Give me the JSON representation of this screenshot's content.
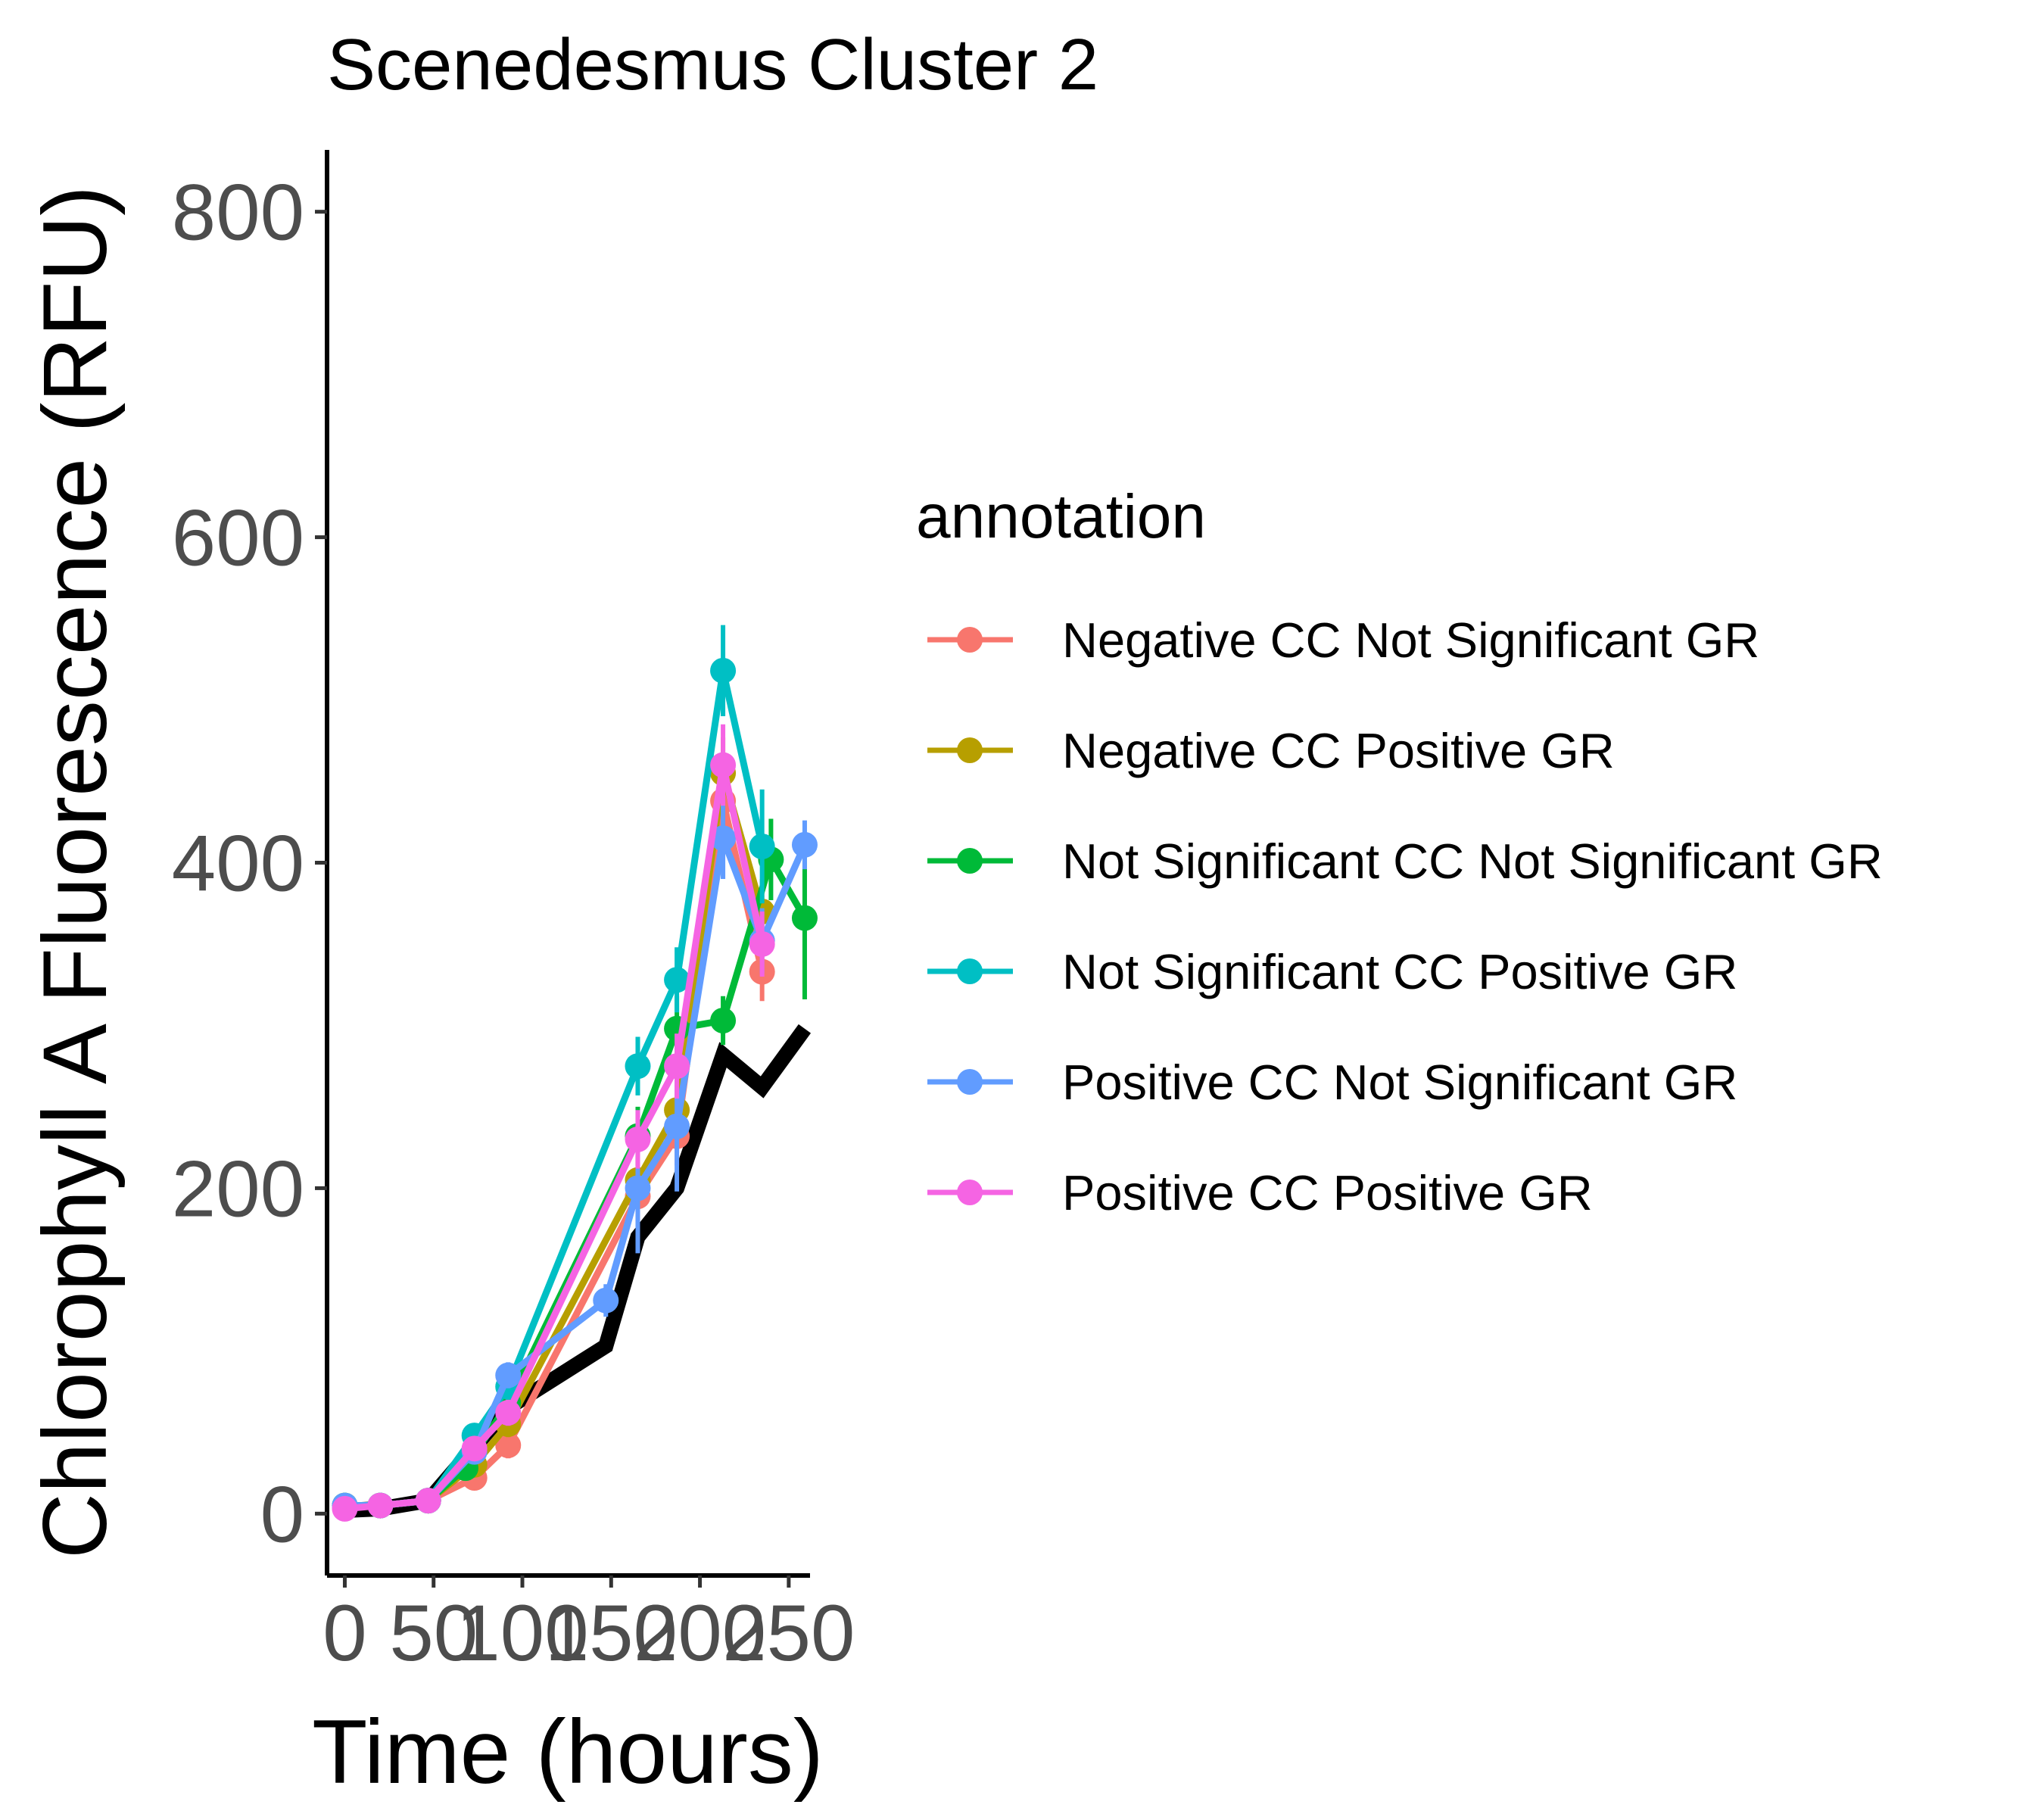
{
  "chart_data": {
    "type": "line",
    "title": "Scenedesmus Cluster 2",
    "xlabel": "Time (hours)",
    "ylabel": "Chlorophyll A Fluorescence (RFU)",
    "xlim": [
      -10,
      262
    ],
    "ylim": [
      -38,
      838
    ],
    "x_ticks": [
      0,
      50,
      100,
      150,
      200,
      250
    ],
    "x_tick_labels": [
      "0",
      "50",
      "100",
      "150",
      "200",
      "250"
    ],
    "y_ticks": [
      0,
      200,
      400,
      600,
      800
    ],
    "y_tick_labels": [
      "0",
      "200",
      "400",
      "600",
      "800"
    ],
    "grid": false,
    "legend": {
      "title": "annotation",
      "position": "right"
    },
    "series": [
      {
        "name": "Negative CC Not Significant GR",
        "color": "#F8766D",
        "points": [
          [
            0,
            5
          ],
          [
            20,
            5
          ],
          [
            47,
            8
          ],
          [
            73,
            22
          ],
          [
            92,
            42
          ],
          [
            165,
            195
          ],
          [
            187,
            232
          ],
          [
            213,
            438
          ],
          [
            235,
            333
          ]
        ],
        "error": [
          2,
          2,
          3,
          6,
          8,
          15,
          18,
          20,
          18
        ]
      },
      {
        "name": "Negative CC Positive GR",
        "color": "#B79F00",
        "points": [
          [
            0,
            5
          ],
          [
            20,
            5
          ],
          [
            47,
            8
          ],
          [
            73,
            30
          ],
          [
            92,
            55
          ],
          [
            165,
            205
          ],
          [
            187,
            248
          ],
          [
            213,
            455
          ],
          [
            235,
            370
          ]
        ],
        "error": [
          2,
          2,
          3,
          6,
          8,
          15,
          18,
          22,
          20
        ]
      },
      {
        "name": "Not Significant CC Not Significant GR",
        "color": "#00BA38",
        "points": [
          [
            0,
            5
          ],
          [
            20,
            5
          ],
          [
            47,
            8
          ],
          [
            68,
            28
          ],
          [
            92,
            68
          ],
          [
            165,
            232
          ],
          [
            187,
            298
          ],
          [
            213,
            303
          ],
          [
            240,
            402
          ],
          [
            259,
            366
          ]
        ],
        "error": [
          2,
          2,
          3,
          6,
          8,
          18,
          20,
          15,
          25,
          50
        ]
      },
      {
        "name": "Not Significant CC Positive GR",
        "color": "#00BFC4",
        "points": [
          [
            0,
            5
          ],
          [
            20,
            5
          ],
          [
            47,
            8
          ],
          [
            73,
            48
          ],
          [
            92,
            78
          ],
          [
            165,
            275
          ],
          [
            187,
            328
          ],
          [
            213,
            518
          ],
          [
            235,
            410
          ]
        ],
        "error": [
          2,
          2,
          3,
          6,
          8,
          18,
          20,
          28,
          35
        ]
      },
      {
        "name": "Positive CC Not Significant GR",
        "color": "#619CFF",
        "points": [
          [
            0,
            5
          ],
          [
            20,
            5
          ],
          [
            47,
            8
          ],
          [
            73,
            38
          ],
          [
            92,
            85
          ],
          [
            147,
            131
          ],
          [
            165,
            200
          ],
          [
            187,
            238
          ],
          [
            213,
            415
          ],
          [
            235,
            352
          ],
          [
            259,
            411
          ]
        ],
        "error": [
          2,
          2,
          3,
          6,
          8,
          10,
          40,
          40,
          25,
          20,
          15
        ]
      },
      {
        "name": "Positive CC Positive GR",
        "color": "#F564E3",
        "points": [
          [
            0,
            3
          ],
          [
            20,
            5
          ],
          [
            47,
            8
          ],
          [
            73,
            40
          ],
          [
            92,
            62
          ],
          [
            165,
            230
          ],
          [
            187,
            275
          ],
          [
            213,
            460
          ],
          [
            235,
            350
          ]
        ],
        "error": [
          2,
          2,
          3,
          6,
          8,
          18,
          20,
          25,
          20
        ]
      },
      {
        "name": "",
        "color": "#000000",
        "points": [
          [
            0,
            2
          ],
          [
            20,
            3
          ],
          [
            47,
            8
          ],
          [
            92,
            65
          ],
          [
            147,
            103
          ],
          [
            165,
            170
          ],
          [
            187,
            200
          ],
          [
            213,
            282
          ],
          [
            235,
            262
          ],
          [
            259,
            298
          ]
        ]
      }
    ]
  }
}
